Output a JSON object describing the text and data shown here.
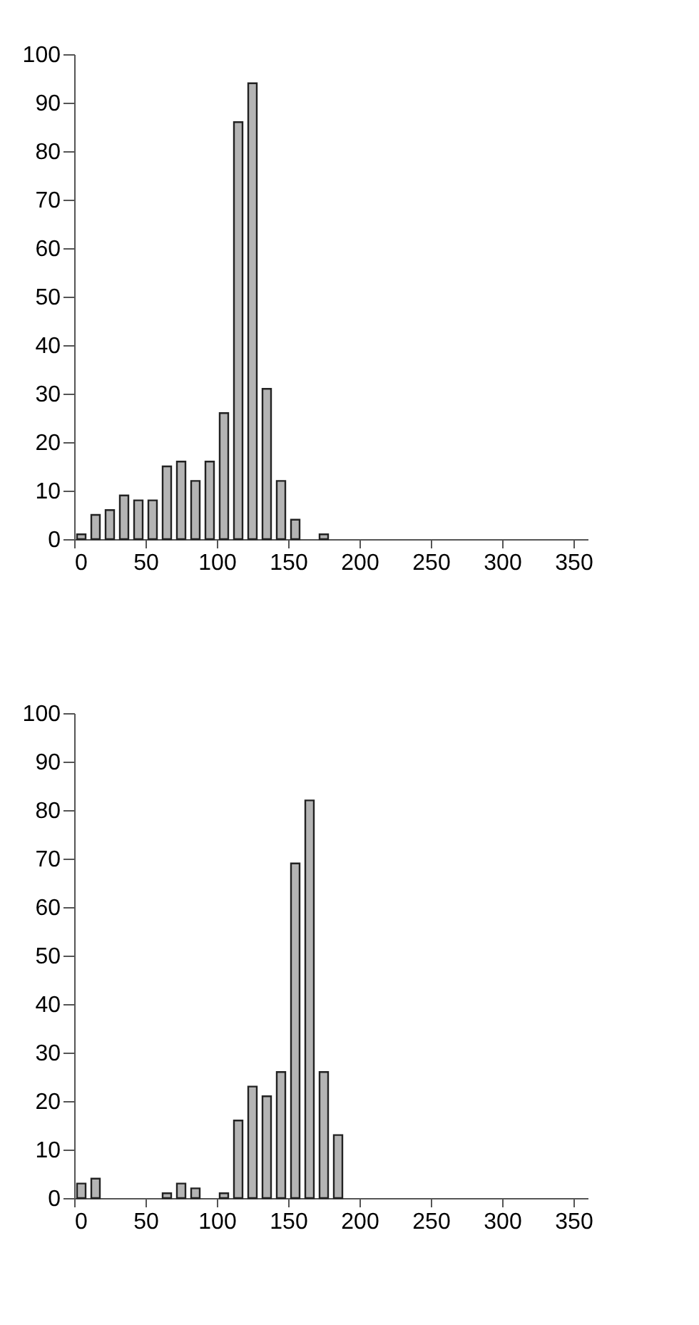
{
  "chart_data": [
    {
      "type": "histogram",
      "bins": [
        0,
        10,
        20,
        30,
        40,
        50,
        60,
        70,
        80,
        90,
        100,
        110,
        120,
        130,
        140,
        150,
        160,
        170,
        180
      ],
      "values": [
        1,
        5,
        6,
        9,
        8,
        8,
        15,
        16,
        12,
        16,
        26,
        86,
        94,
        31,
        12,
        4,
        0,
        1
      ],
      "color": "#b4b4b4",
      "xlim": [
        0,
        360
      ],
      "xticks": [
        0,
        50,
        100,
        150,
        200,
        250,
        300,
        350
      ],
      "ylim": [
        0,
        100
      ],
      "yticks": [
        0,
        10,
        20,
        30,
        40,
        50,
        60,
        70,
        80,
        90,
        100
      ],
      "grid": false
    },
    {
      "type": "histogram",
      "bins": [
        0,
        10,
        20,
        30,
        40,
        50,
        60,
        70,
        80,
        90,
        100,
        110,
        120,
        130,
        140,
        150,
        160,
        170,
        180,
        190
      ],
      "values": [
        3,
        4,
        0,
        0,
        0,
        0,
        1,
        3,
        2,
        0,
        1,
        16,
        23,
        21,
        26,
        69,
        82,
        26,
        13
      ],
      "color": "#b4b4b4",
      "xlim": [
        0,
        360
      ],
      "xticks": [
        0,
        50,
        100,
        150,
        200,
        250,
        300,
        350
      ],
      "ylim": [
        0,
        100
      ],
      "yticks": [
        0,
        10,
        20,
        30,
        40,
        50,
        60,
        70,
        80,
        90,
        100
      ],
      "grid": false
    }
  ]
}
